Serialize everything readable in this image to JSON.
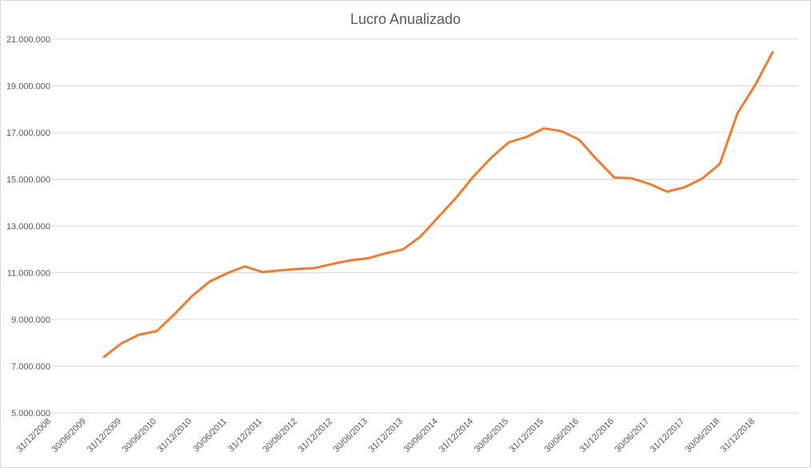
{
  "chart_data": {
    "type": "line",
    "title": "Lucro Anualizado",
    "xlabel": "",
    "ylabel": "",
    "ylim": [
      5000000,
      21000000
    ],
    "yticks": [
      5000000,
      7000000,
      9000000,
      11000000,
      13000000,
      15000000,
      17000000,
      19000000,
      21000000
    ],
    "ytick_labels": [
      "5.000.000",
      "7.000.000",
      "9.000.000",
      "11.000.000",
      "13.000.000",
      "15.000.000",
      "17.000.000",
      "19.000.000",
      "21.000.000"
    ],
    "x_tick_labels": [
      "31/12/2008",
      "30/06/2009",
      "31/12/2009",
      "30/06/2010",
      "31/12/2010",
      "30/06/2011",
      "31/12/2011",
      "30/06/2012",
      "31/12/2012",
      "30/06/2013",
      "31/12/2013",
      "30/06/2014",
      "31/12/2014",
      "30/06/2015",
      "31/12/2015",
      "30/06/2016",
      "31/12/2016",
      "30/06/2017",
      "31/12/2017",
      "30/06/2018",
      "31/12/2018"
    ],
    "x": [
      "30/09/2009",
      "31/12/2009",
      "31/03/2010",
      "30/06/2010",
      "30/09/2010",
      "31/12/2010",
      "31/03/2011",
      "30/06/2011",
      "30/09/2011",
      "31/12/2011",
      "31/03/2012",
      "30/06/2012",
      "30/09/2012",
      "31/12/2012",
      "31/03/2013",
      "30/06/2013",
      "30/09/2013",
      "31/12/2013",
      "31/03/2014",
      "30/06/2014",
      "30/09/2014",
      "31/12/2014",
      "31/03/2015",
      "30/06/2015",
      "30/09/2015",
      "31/12/2015",
      "31/03/2016",
      "30/06/2016",
      "30/09/2016",
      "31/12/2016",
      "31/03/2017",
      "30/06/2017",
      "30/09/2017",
      "31/12/2017",
      "31/03/2018",
      "30/06/2018",
      "30/09/2018",
      "31/12/2018",
      "31/03/2019"
    ],
    "series": [
      {
        "color": "#ED7D31",
        "values": [
          7400000,
          7980000,
          8350000,
          8500000,
          9220000,
          10000000,
          10620000,
          10980000,
          11270000,
          11030000,
          11100000,
          11160000,
          11200000,
          11380000,
          11530000,
          11620000,
          11830000,
          12000000,
          12560000,
          13380000,
          14200000,
          15120000,
          15920000,
          16580000,
          16810000,
          17180000,
          17060000,
          16700000,
          15850000,
          15080000,
          15040000,
          14800000,
          14470000,
          14660000,
          15030000,
          15660000,
          17820000,
          19020000,
          20440000
        ]
      }
    ],
    "grid": true,
    "legend": "none"
  }
}
